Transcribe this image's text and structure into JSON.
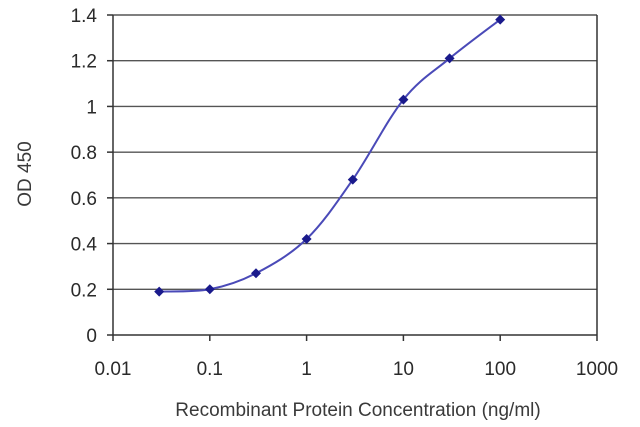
{
  "chart_data": {
    "type": "line",
    "title": "",
    "xlabel": "Recombinant Protein Concentration (ng/ml)",
    "ylabel": "OD 450",
    "x_scale": "log",
    "xlim": [
      0.01,
      1000
    ],
    "ylim": [
      0,
      1.4
    ],
    "x_ticks": [
      0.01,
      0.1,
      1,
      10,
      100,
      1000
    ],
    "x_tick_labels": [
      "0.01",
      "0.1",
      "1",
      "10",
      "100",
      "1000"
    ],
    "y_ticks": [
      0,
      0.2,
      0.4,
      0.6,
      0.8,
      1,
      1.2,
      1.4
    ],
    "y_tick_labels": [
      "0",
      "0.2",
      "0.4",
      "0.6",
      "0.8",
      "1",
      "1.2",
      "1.4"
    ],
    "grid": "horizontal",
    "legend": "none",
    "colors": {
      "line": "#4a4ab8",
      "marker": "#1a1a8c",
      "grid": "#555555"
    },
    "series": [
      {
        "x": [
          0.03,
          0.1,
          0.3,
          1,
          3,
          10,
          30,
          100
        ],
        "y": [
          0.19,
          0.2,
          0.27,
          0.42,
          0.68,
          1.03,
          1.21,
          1.38
        ]
      }
    ]
  }
}
